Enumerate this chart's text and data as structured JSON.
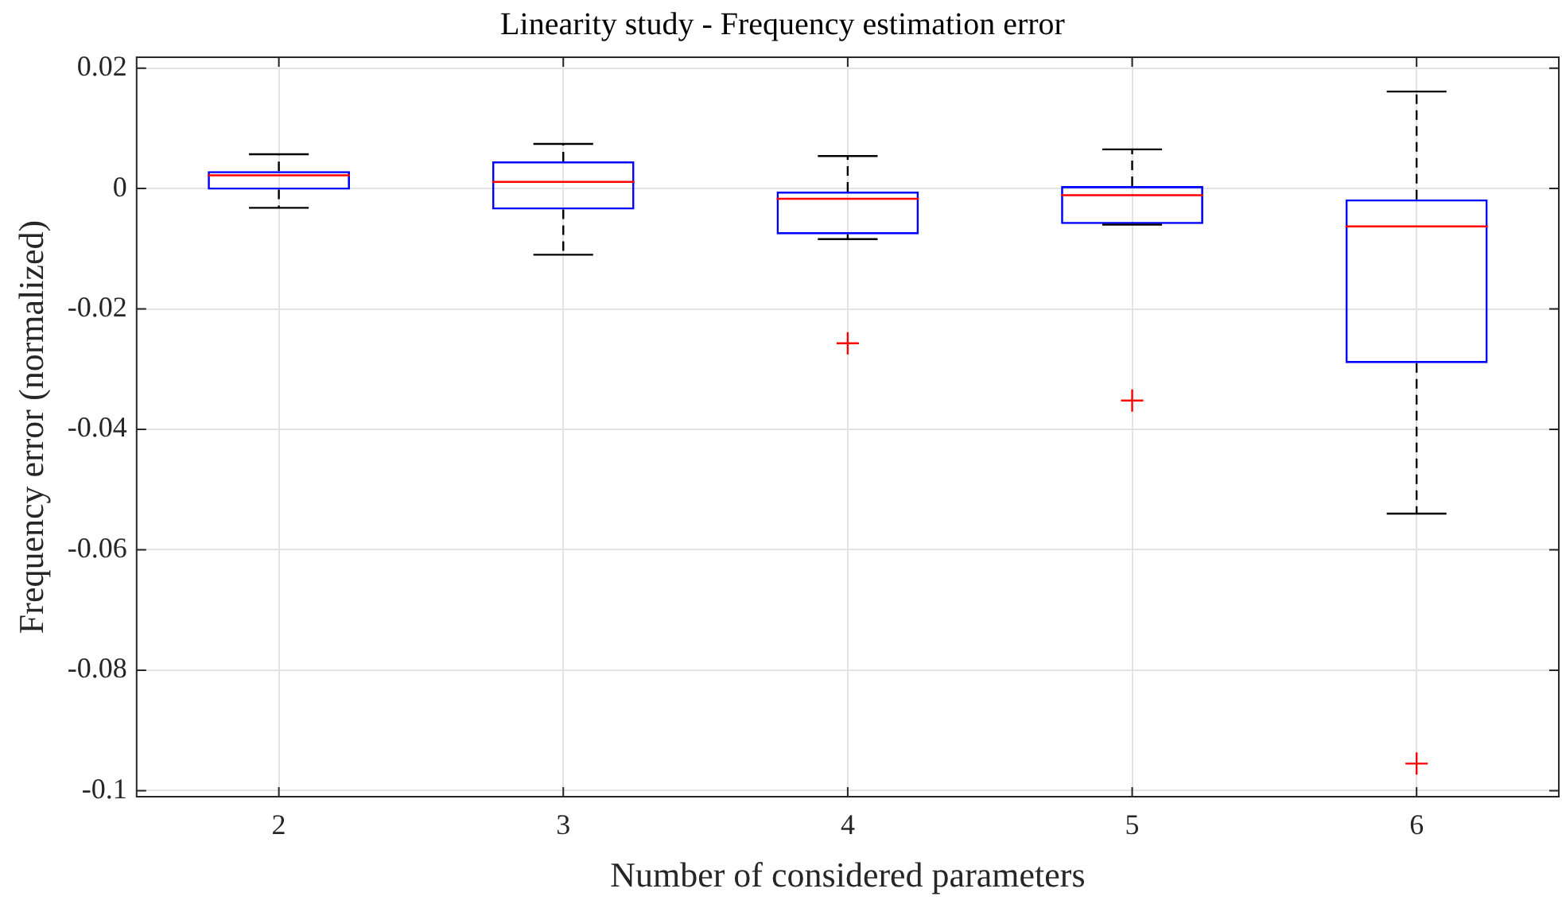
{
  "chart_data": {
    "type": "box",
    "title": "Linearity study - Frequency estimation error",
    "xlabel": "Number of considered parameters",
    "ylabel": "Frequency error (normalized)",
    "categories": [
      "2",
      "3",
      "4",
      "5",
      "6"
    ],
    "color": "#0000ff",
    "boxes": [
      {
        "low": -0.0032,
        "q1": -0.0002,
        "median": 0.0022,
        "q3": 0.0029,
        "high": 0.0057
      },
      {
        "low": -0.011,
        "q1": -0.0035,
        "median": 0.0011,
        "q3": 0.0045,
        "high": 0.0074
      },
      {
        "low": -0.0084,
        "q1": -0.0076,
        "median": -0.0017,
        "q3": -0.0005,
        "high": 0.0054,
        "outliers": [
          -0.0257
        ]
      },
      {
        "low": -0.006,
        "q1": -0.0059,
        "median": -0.0011,
        "q3": 0.0004,
        "high": 0.0065,
        "outliers": [
          -0.0352
        ]
      },
      {
        "low": -0.054,
        "q1": -0.029,
        "median": -0.0063,
        "q3": -0.0018,
        "high": 0.0161,
        "outliers": [
          -0.0955
        ]
      }
    ],
    "ylim": [
      -0.101,
      0.0218
    ],
    "yticks": [
      {
        "value": -0.1,
        "label": "-0.1"
      },
      {
        "value": -0.08,
        "label": "-0.08"
      },
      {
        "value": -0.06,
        "label": "-0.06"
      },
      {
        "value": -0.04,
        "label": "-0.04"
      },
      {
        "value": -0.02,
        "label": "-0.02"
      },
      0,
      {
        "value": 0.02,
        "label": "0.02"
      }
    ],
    "grid": true
  }
}
